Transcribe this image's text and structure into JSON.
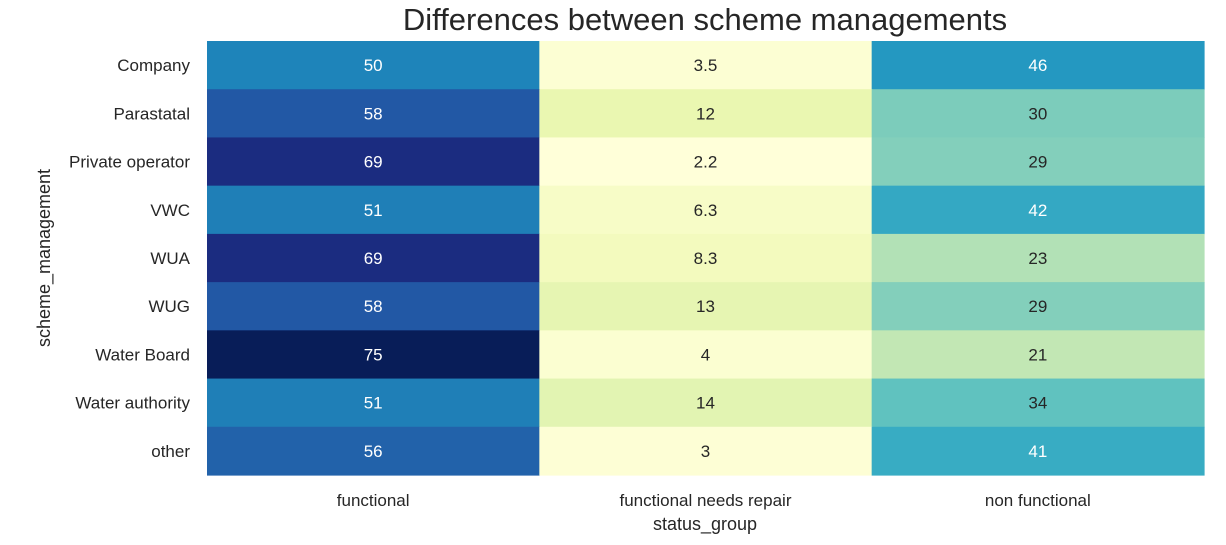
{
  "chart_data": {
    "type": "heatmap",
    "title": "Differences between scheme managements",
    "xlabel": "status_group",
    "ylabel": "scheme_management",
    "columns": [
      "functional",
      "functional needs repair",
      "non functional"
    ],
    "rows": [
      "Company",
      "Parastatal",
      "Private operator",
      "VWC",
      "WUA",
      "WUG",
      "Water Board",
      "Water authority",
      "other"
    ],
    "values": [
      [
        50,
        3.5,
        46
      ],
      [
        58,
        12,
        30
      ],
      [
        69,
        2.2,
        29
      ],
      [
        51,
        6.3,
        42
      ],
      [
        69,
        8.3,
        23
      ],
      [
        58,
        13,
        29
      ],
      [
        75,
        4,
        21
      ],
      [
        51,
        14,
        34
      ],
      [
        56,
        3,
        41
      ]
    ],
    "colormap": "YlGnBu",
    "colorbar": false
  }
}
